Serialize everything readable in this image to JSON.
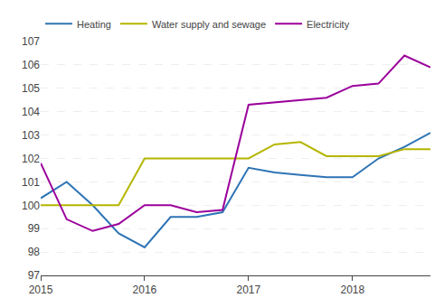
{
  "chart_data": {
    "type": "line",
    "categories": [
      "2015",
      null,
      null,
      null,
      "2016",
      null,
      null,
      null,
      "2017",
      null,
      null,
      null,
      "2018",
      null,
      null,
      null
    ],
    "series": [
      {
        "name": "Heating",
        "color": "#2e74b5",
        "values": [
          100.3,
          101.0,
          100.0,
          98.8,
          98.2,
          99.5,
          99.5,
          99.7,
          101.6,
          101.4,
          101.3,
          101.2,
          101.2,
          102.0,
          102.5,
          103.1
        ]
      },
      {
        "name": "Water supply and sewage",
        "color": "#b5b500",
        "values": [
          100.0,
          100.0,
          100.0,
          100.0,
          102.0,
          102.0,
          102.0,
          102.0,
          102.0,
          102.6,
          102.7,
          102.1,
          102.1,
          102.1,
          102.4,
          102.4
        ]
      },
      {
        "name": "Electricity",
        "color": "#9b009b",
        "values": [
          101.8,
          99.4,
          98.9,
          99.2,
          100.0,
          100.0,
          99.7,
          99.8,
          104.3,
          104.4,
          104.5,
          104.6,
          105.1,
          105.2,
          106.4,
          105.9
        ]
      }
    ],
    "ylim": [
      97,
      107
    ],
    "yticks": [
      97,
      98,
      99,
      100,
      101,
      102,
      103,
      104,
      105,
      106,
      107
    ],
    "grid": true,
    "legend": "upper left"
  }
}
